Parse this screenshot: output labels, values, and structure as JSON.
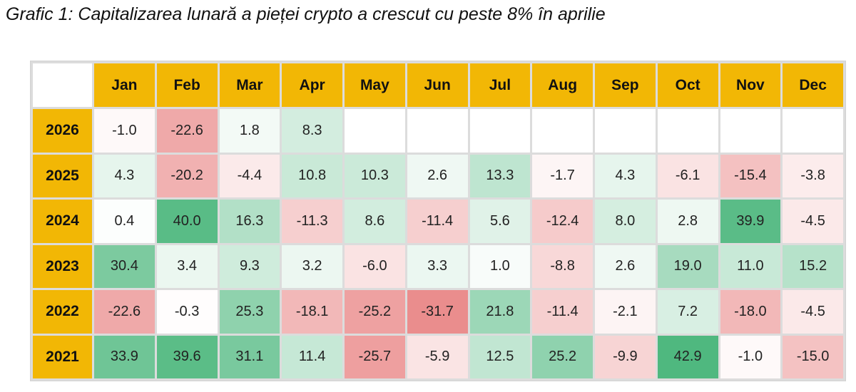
{
  "title": "Grafic 1: Capitalizarea lunară a pieței crypto a crescut cu peste 8% în aprilie",
  "colors": {
    "header_bg": "#F2B705",
    "positive": "#4FB87F",
    "negative": "#E46B6B",
    "neutral": "#FFFFFF",
    "grid_line": "#DCDCDC"
  },
  "chart_data": {
    "type": "heatmap",
    "title": "Grafic 1: Capitalizarea lunară a pieței crypto a crescut cu peste 8% în aprilie",
    "columns": [
      "Jan",
      "Feb",
      "Mar",
      "Apr",
      "May",
      "Jun",
      "Jul",
      "Aug",
      "Sep",
      "Oct",
      "Nov",
      "Dec"
    ],
    "rows": [
      {
        "year": "2026",
        "values": [
          "-1.0",
          "-22.6",
          "1.8",
          "8.3",
          "",
          "",
          "",
          "",
          "",
          "",
          "",
          ""
        ]
      },
      {
        "year": "2025",
        "values": [
          "4.3",
          "-20.2",
          "-4.4",
          "10.8",
          "10.3",
          "2.6",
          "13.3",
          "-1.7",
          "4.3",
          "-6.1",
          "-15.4",
          "-3.8"
        ]
      },
      {
        "year": "2024",
        "values": [
          "0.4",
          "40.0",
          "16.3",
          "-11.3",
          "8.6",
          "-11.4",
          "5.6",
          "-12.4",
          "8.0",
          "2.8",
          "39.9",
          "-4.5"
        ]
      },
      {
        "year": "2023",
        "values": [
          "30.4",
          "3.4",
          "9.3",
          "3.2",
          "-6.0",
          "3.3",
          "1.0",
          "-8.8",
          "2.6",
          "19.0",
          "11.0",
          "15.2"
        ]
      },
      {
        "year": "2022",
        "values": [
          "-22.6",
          "-0.3",
          "25.3",
          "-18.1",
          "-25.2",
          "-31.7",
          "21.8",
          "-11.4",
          "-2.1",
          "7.2",
          "-18.0",
          "-4.5"
        ]
      },
      {
        "year": "2021",
        "values": [
          "33.9",
          "39.6",
          "31.1",
          "11.4",
          "-25.7",
          "-5.9",
          "12.5",
          "25.2",
          "-9.9",
          "42.9",
          "-1.0",
          "-15.0"
        ]
      }
    ]
  }
}
